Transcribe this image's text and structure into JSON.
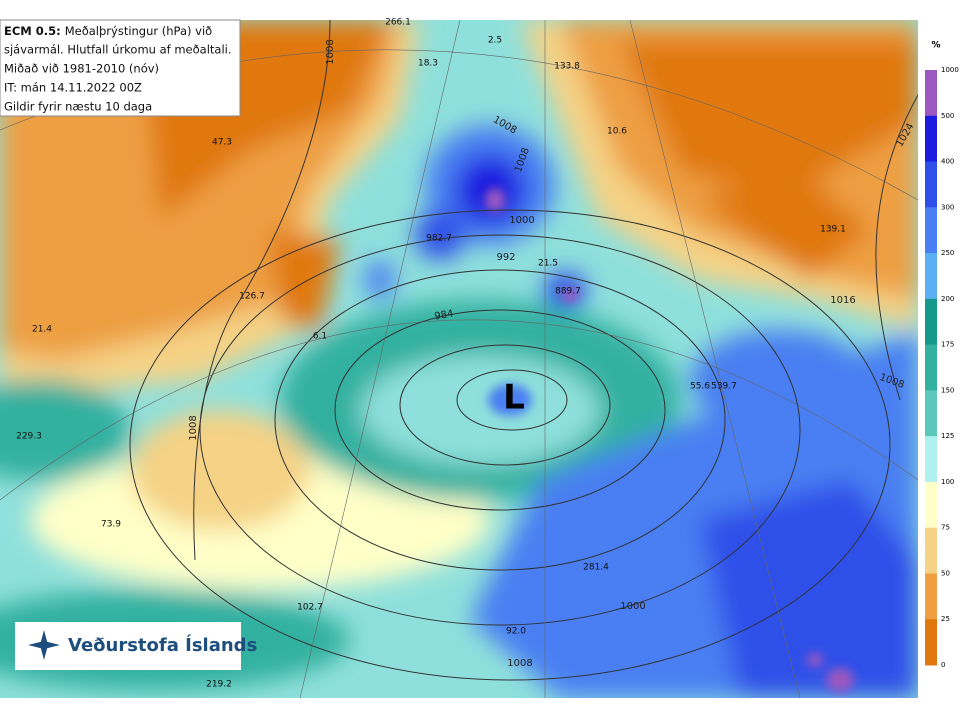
{
  "header": {
    "lines": [
      {
        "bold": "ECM 0.5:",
        "text": "Meðalþrýstingur (hPa) við"
      },
      {
        "text": "sjávarmál. Hlutfall úrkomu af meðaltali."
      },
      {
        "text": "Miðað við 1981-2010 (nóv)"
      },
      {
        "text": "IT: mán 14.11.2022 00Z"
      },
      {
        "text": "Gildir fyrir næstu 10 daga"
      }
    ]
  },
  "legend": {
    "unit": "%",
    "levels": [
      1000,
      500,
      400,
      300,
      250,
      200,
      175,
      150,
      125,
      100,
      75,
      50,
      25,
      0
    ],
    "colors": [
      "#9b59c0",
      "#1c1ce0",
      "#2e4fe8",
      "#4a7ff2",
      "#5ab0f0",
      "#14998a",
      "#33b0a0",
      "#5cc8bc",
      "#b0f0f0",
      "#ffffc8",
      "#f5d285",
      "#ee9f42",
      "#e07810"
    ]
  },
  "point_labels": [
    "266.1",
    "2.5",
    "18.3",
    "133.8",
    "47.3",
    "10.6",
    "982.7",
    "139.1",
    "21.5",
    "889.7",
    "126.7",
    "21.4",
    "6.1",
    "55.6",
    "539.7",
    "229.3",
    "73.9",
    "281.4",
    "102.7",
    "92.0",
    "219.2"
  ],
  "isobar_labels": [
    "1008",
    "1008",
    "1008",
    "1000",
    "992",
    "984",
    "1008",
    "1016",
    "1008",
    "1000",
    "1008",
    "1024"
  ],
  "low_label": "L",
  "logo": {
    "text": "Veðurstofa Íslands"
  }
}
